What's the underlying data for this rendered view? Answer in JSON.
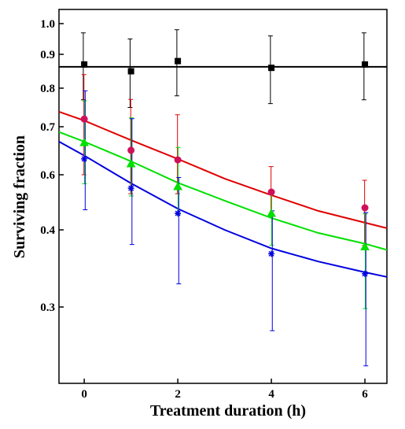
{
  "chart_data": {
    "type": "scatter",
    "x_label": "Treatment duration (h)",
    "y_label": "Surviving fraction",
    "xlim": [
      -0.54,
      6.47
    ],
    "xticks": [
      0,
      2,
      4,
      6
    ],
    "ylim": [
      0.2,
      1.05
    ],
    "yticks": [
      {
        "value": 1.0,
        "label": "1.0"
      },
      0.9,
      0.8,
      0.7,
      0.6,
      0.4,
      0.3
    ],
    "x": [
      0,
      1,
      2,
      4,
      6
    ],
    "fit_x": [
      -0.54,
      0,
      1,
      2,
      3,
      4,
      5,
      6,
      6.47
    ],
    "series": [
      {
        "color": "#000000",
        "marker": "square",
        "values": [
          0.87,
          0.85,
          0.88,
          0.86,
          0.87
        ],
        "errors": [
          0.1,
          0.1,
          0.1,
          0.1,
          0.1
        ],
        "fit_values": [
          0.863,
          0.863,
          0.863,
          0.863,
          0.863,
          0.863,
          0.863,
          0.863,
          0.863
        ]
      },
      {
        "color": "#e00000",
        "marker_color": "#d0105a",
        "marker": "circle",
        "values": [
          0.72,
          0.651,
          0.631,
          0.537,
          0.48
        ],
        "errors": [
          0.12,
          0.12,
          0.1,
          0.08,
          0.1
        ],
        "fit_values": [
          0.739,
          0.716,
          0.672,
          0.633,
          0.586,
          0.526,
          0.469,
          0.426,
          0.406
        ]
      },
      {
        "color": "#00e000",
        "marker": "triangle",
        "values": [
          0.667,
          0.623,
          0.557,
          0.46,
          0.378
        ],
        "errors": [
          0.1,
          0.1,
          0.1,
          0.08,
          0.08
        ],
        "fit_values": [
          0.689,
          0.669,
          0.628,
          0.571,
          0.506,
          0.443,
          0.396,
          0.382,
          0.374
        ]
      },
      {
        "color": "#0000e0",
        "marker": "star",
        "values": [
          0.633,
          0.551,
          0.46,
          0.369,
          0.343
        ],
        "errors": [
          0.16,
          0.17,
          0.13,
          0.1,
          0.12
        ],
        "fit_values": [
          0.669,
          0.64,
          0.569,
          0.477,
          0.4,
          0.376,
          0.359,
          0.345,
          0.339
        ]
      }
    ]
  }
}
